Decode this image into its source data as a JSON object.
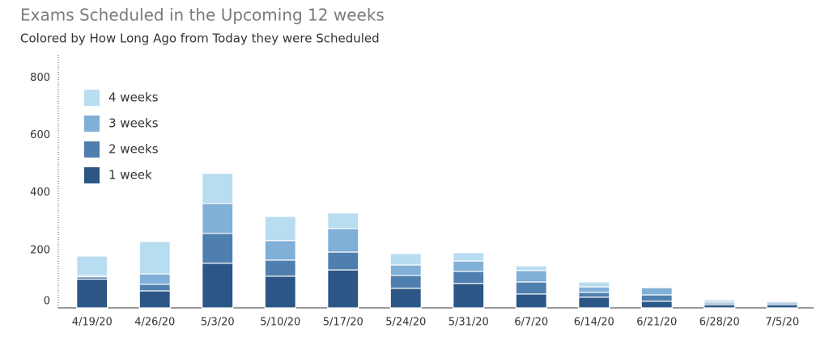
{
  "chart_data": {
    "type": "stacked_bar",
    "title": "Exams Scheduled in the Upcoming 12 weeks",
    "subtitle": "Colored by How Long Ago from Today they were Scheduled",
    "categories": [
      "4/19/20",
      "4/26/20",
      "5/3/20",
      "5/10/20",
      "5/17/20",
      "5/24/20",
      "5/31/20",
      "6/7/20",
      "6/14/20",
      "6/21/20",
      "6/28/20",
      "7/5/20"
    ],
    "series": [
      {
        "name": "1 week",
        "color": "#2b5685",
        "values": [
          100,
          59,
          155,
          110,
          132,
          68,
          85,
          48,
          37,
          23,
          11,
          11
        ]
      },
      {
        "name": "2 weeks",
        "color": "#4f7fae",
        "values": [
          8,
          23,
          104,
          56,
          62,
          45,
          42,
          42,
          17,
          22,
          6,
          6
        ]
      },
      {
        "name": "3 weeks",
        "color": "#80afd7",
        "values": [
          5,
          36,
          104,
          68,
          82,
          36,
          36,
          40,
          19,
          25,
          6,
          5
        ]
      },
      {
        "name": "4 weeks",
        "color": "#b8dcf0",
        "values": [
          67,
          113,
          105,
          84,
          54,
          40,
          29,
          16,
          17,
          0,
          6,
          4
        ]
      }
    ],
    "ylim": [
      0,
      880
    ],
    "yticks": [
      0,
      200,
      400,
      600,
      800
    ]
  }
}
